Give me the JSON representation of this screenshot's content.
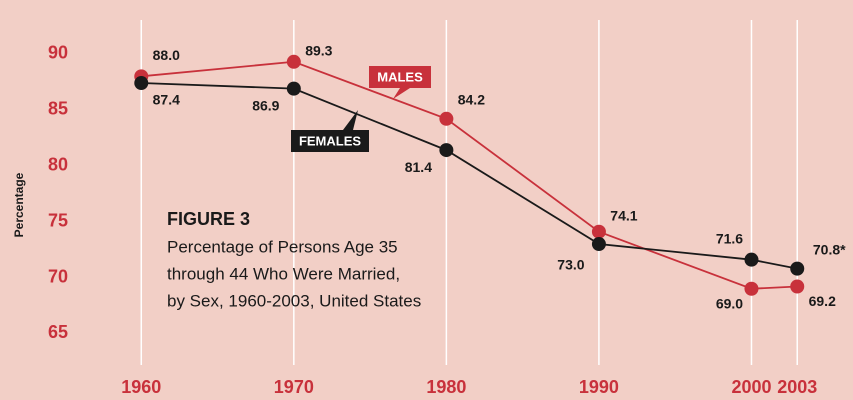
{
  "chart_data": {
    "type": "line",
    "title": "FIGURE 3",
    "caption": [
      "Percentage of Persons Age 35",
      "through 44 Who Were Married,",
      "by Sex, 1960-2003, United States"
    ],
    "y_label": "Percentage",
    "x": [
      1960,
      1970,
      1980,
      1990,
      2000,
      2003
    ],
    "xlim": [
      1955,
      2006
    ],
    "xticks": [
      1960,
      1970,
      1980,
      1990,
      2000,
      2003
    ],
    "ylim": [
      62,
      92
    ],
    "yticks": [
      65,
      70,
      75,
      80,
      85,
      90
    ],
    "grid": true,
    "series": [
      {
        "name": "MALES",
        "color": "#c8313b",
        "values": [
          88.0,
          89.3,
          84.2,
          74.1,
          69.0,
          69.2
        ],
        "value_labels": [
          "88.0",
          "89.3",
          "84.2",
          "74.1",
          "69.0",
          "69.2"
        ]
      },
      {
        "name": "FEMALES",
        "color": "#1a1a1a",
        "values": [
          87.4,
          86.9,
          81.4,
          73.0,
          71.6,
          70.8
        ],
        "value_labels": [
          "87.4",
          "86.9",
          "81.4",
          "73.0",
          "71.6",
          "70.8*"
        ]
      }
    ]
  }
}
